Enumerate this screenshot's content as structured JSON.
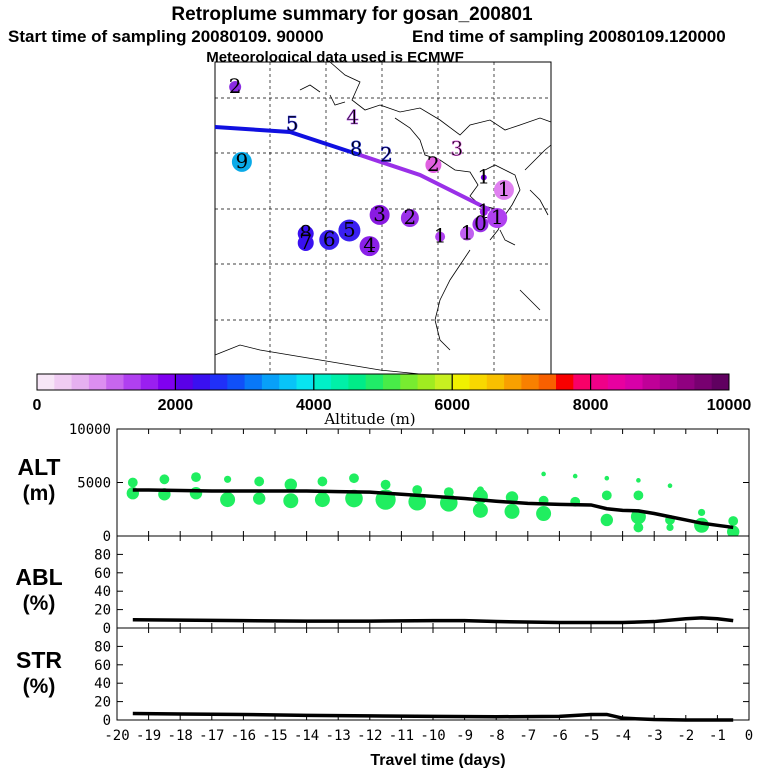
{
  "header": {
    "title": "Retroplume summary for gosan_200801",
    "start_label": "Start time of sampling 20080109. 90000",
    "end_label": "End time of sampling 20080109.120000",
    "met_label": "Meteorological data used is ECMWF"
  },
  "colorbar": {
    "ticks": [
      "0",
      "2000",
      "4000",
      "6000",
      "8000",
      "10000"
    ],
    "label": "Altitude (m)",
    "colors": [
      "#f7e6f7",
      "#f0ccf3",
      "#e6b0f0",
      "#dc8ef0",
      "#c766ee",
      "#b040f0",
      "#9a1ff0",
      "#8000f0",
      "#5a00e8",
      "#3a10f0",
      "#2030f8",
      "#1050f8",
      "#0878f8",
      "#08a0f8",
      "#08c4f8",
      "#08e4f0",
      "#00f0c8",
      "#00f0a8",
      "#00ec88",
      "#20ec68",
      "#48ec48",
      "#78ec30",
      "#a0ec20",
      "#c8f020",
      "#f0f000",
      "#f8d800",
      "#f8c000",
      "#f8a000",
      "#f88000",
      "#f86000",
      "#f80000",
      "#f80068",
      "#f00088",
      "#e800a0",
      "#d800a8",
      "#c00098",
      "#a80090",
      "#900080",
      "#780070",
      "#600060"
    ]
  },
  "map": {
    "labels": [
      {
        "t": "2",
        "lon": 0.06,
        "lat": 0.08,
        "c": "#8a2be2",
        "dot": true
      },
      {
        "t": "4",
        "lon": 0.41,
        "lat": 0.18,
        "c": "#b04fe0"
      },
      {
        "t": "5",
        "lon": 0.23,
        "lat": 0.2,
        "c": "#2020d0"
      },
      {
        "t": "9",
        "lon": 0.08,
        "lat": 0.32,
        "c": "#0aaae8",
        "dot": true,
        "r": 10
      },
      {
        "t": "8",
        "lon": 0.42,
        "lat": 0.28,
        "c": "#2030d0"
      },
      {
        "t": "2",
        "lon": 0.51,
        "lat": 0.3,
        "c": "#2020d0"
      },
      {
        "t": "2",
        "lon": 0.65,
        "lat": 0.33,
        "c": "#e060e0",
        "dot": true,
        "r": 8
      },
      {
        "t": "3",
        "lon": 0.72,
        "lat": 0.28,
        "c": "#e060e0"
      },
      {
        "t": "1",
        "lon": 0.8,
        "lat": 0.37,
        "c": "#7a00f0",
        "dot": true,
        "r": 3
      },
      {
        "t": "1",
        "lon": 0.86,
        "lat": 0.41,
        "c": "#e080f0",
        "dot": true,
        "r": 10
      },
      {
        "t": "3",
        "lon": 0.49,
        "lat": 0.49,
        "c": "#8a1be2",
        "dot": true,
        "r": 10
      },
      {
        "t": "2",
        "lon": 0.58,
        "lat": 0.5,
        "c": "#9a30e8",
        "dot": true,
        "r": 9
      },
      {
        "t": "1",
        "lon": 0.8,
        "lat": 0.48,
        "c": "#a020f0",
        "dot": true,
        "r": 4
      },
      {
        "t": "1",
        "lon": 0.84,
        "lat": 0.5,
        "c": "#b040f0",
        "dot": true,
        "r": 10
      },
      {
        "t": "0",
        "lon": 0.79,
        "lat": 0.52,
        "c": "#9a30e8",
        "dot": true,
        "r": 8
      },
      {
        "t": "1",
        "lon": 0.75,
        "lat": 0.55,
        "c": "#c060f0",
        "dot": true,
        "r": 7
      },
      {
        "t": "1",
        "lon": 0.67,
        "lat": 0.56,
        "c": "#b040f0",
        "dot": true,
        "r": 5
      },
      {
        "t": "5",
        "lon": 0.4,
        "lat": 0.54,
        "c": "#3a20f0",
        "dot": true,
        "r": 11
      },
      {
        "t": "8",
        "lon": 0.27,
        "lat": 0.55,
        "c": "#3a10f0",
        "dot": true,
        "r": 8
      },
      {
        "t": "6",
        "lon": 0.34,
        "lat": 0.57,
        "c": "#3a20f0",
        "dot": true,
        "r": 10
      },
      {
        "t": "7",
        "lon": 0.27,
        "lat": 0.58,
        "c": "#3a10f0",
        "dot": true,
        "r": 8
      },
      {
        "t": "4",
        "lon": 0.46,
        "lat": 0.59,
        "c": "#8a20e8",
        "dot": true,
        "r": 10
      }
    ]
  },
  "chart_data": [
    {
      "type": "scatter",
      "title": "ALT (m)",
      "ylabel": "ALT (m)",
      "xlabel": "Travel time (days)",
      "xlim": [
        -20,
        0
      ],
      "ylim": [
        0,
        10000
      ],
      "yticks": [
        "0",
        "5000",
        "10000"
      ],
      "median_line": {
        "x": [
          -19.5,
          -19,
          -18,
          -17,
          -16,
          -15,
          -14,
          -13,
          -12,
          -11,
          -10,
          -9,
          -8,
          -7,
          -6,
          -5,
          -4.5,
          -4,
          -3.5,
          -3,
          -2.5,
          -2,
          -1.5,
          -1,
          -0.5
        ],
        "y": [
          4300,
          4300,
          4250,
          4200,
          4200,
          4200,
          4200,
          4150,
          4100,
          3900,
          3700,
          3500,
          3250,
          3050,
          2950,
          2900,
          2550,
          2400,
          2350,
          2100,
          1800,
          1500,
          1200,
          1000,
          800
        ]
      },
      "points": [
        {
          "x": -19.5,
          "y": 5000,
          "s": 3
        },
        {
          "x": -19.5,
          "y": 4000,
          "s": 4
        },
        {
          "x": -18.5,
          "y": 5300,
          "s": 3
        },
        {
          "x": -18.5,
          "y": 3900,
          "s": 4
        },
        {
          "x": -17.5,
          "y": 5500,
          "s": 3
        },
        {
          "x": -17.5,
          "y": 4000,
          "s": 4
        },
        {
          "x": -16.5,
          "y": 5300,
          "s": 2
        },
        {
          "x": -16.5,
          "y": 3400,
          "s": 5
        },
        {
          "x": -15.5,
          "y": 5100,
          "s": 3
        },
        {
          "x": -15.5,
          "y": 3500,
          "s": 4
        },
        {
          "x": -14.5,
          "y": 4800,
          "s": 4
        },
        {
          "x": -14.5,
          "y": 3300,
          "s": 5
        },
        {
          "x": -13.5,
          "y": 5100,
          "s": 3
        },
        {
          "x": -13.5,
          "y": 3400,
          "s": 5
        },
        {
          "x": -12.5,
          "y": 5400,
          "s": 3
        },
        {
          "x": -12.5,
          "y": 3500,
          "s": 6
        },
        {
          "x": -11.5,
          "y": 4800,
          "s": 3
        },
        {
          "x": -11.5,
          "y": 3400,
          "s": 7
        },
        {
          "x": -10.5,
          "y": 4300,
          "s": 3
        },
        {
          "x": -10.5,
          "y": 3200,
          "s": 6
        },
        {
          "x": -9.5,
          "y": 4100,
          "s": 3
        },
        {
          "x": -9.5,
          "y": 3100,
          "s": 6
        },
        {
          "x": -8.5,
          "y": 4300,
          "s": 2
        },
        {
          "x": -8.5,
          "y": 2400,
          "s": 5
        },
        {
          "x": -8.5,
          "y": 3700,
          "s": 5
        },
        {
          "x": -7.5,
          "y": 3600,
          "s": 4
        },
        {
          "x": -7.5,
          "y": 2300,
          "s": 5
        },
        {
          "x": -6.5,
          "y": 5800,
          "s": 1
        },
        {
          "x": -6.5,
          "y": 3300,
          "s": 3
        },
        {
          "x": -6.5,
          "y": 2100,
          "s": 5
        },
        {
          "x": -5.5,
          "y": 5600,
          "s": 1
        },
        {
          "x": -5.5,
          "y": 3200,
          "s": 3
        },
        {
          "x": -4.5,
          "y": 5400,
          "s": 1
        },
        {
          "x": -4.5,
          "y": 3800,
          "s": 3
        },
        {
          "x": -4.5,
          "y": 1500,
          "s": 4
        },
        {
          "x": -3.5,
          "y": 5200,
          "s": 1
        },
        {
          "x": -3.5,
          "y": 3800,
          "s": 3
        },
        {
          "x": -3.5,
          "y": 1800,
          "s": 5
        },
        {
          "x": -3.5,
          "y": 800,
          "s": 3
        },
        {
          "x": -2.5,
          "y": 4700,
          "s": 1
        },
        {
          "x": -2.5,
          "y": 1500,
          "s": 3
        },
        {
          "x": -2.5,
          "y": 800,
          "s": 2
        },
        {
          "x": -1.5,
          "y": 2200,
          "s": 2
        },
        {
          "x": -1.5,
          "y": 1000,
          "s": 5
        },
        {
          "x": -0.5,
          "y": 1400,
          "s": 3
        },
        {
          "x": -0.5,
          "y": 400,
          "s": 4
        }
      ]
    },
    {
      "type": "line",
      "title": "ABL (%)",
      "ylabel": "ABL (%)",
      "xlim": [
        -20,
        0
      ],
      "ylim": [
        0,
        90
      ],
      "yticks": [
        "0",
        "20",
        "40",
        "60",
        "80"
      ],
      "x": [
        -19.5,
        -18,
        -16,
        -14,
        -12,
        -10,
        -9,
        -8,
        -6,
        -4,
        -3,
        -2,
        -1.5,
        -1,
        -0.5
      ],
      "y": [
        9,
        8.5,
        8,
        7.5,
        7.5,
        8,
        8,
        7,
        6,
        6,
        7,
        10,
        11,
        10,
        8
      ]
    },
    {
      "type": "line",
      "title": "STR (%)",
      "ylabel": "STR (%)",
      "xlabel": "Travel time (days)",
      "xlim": [
        -20,
        0
      ],
      "ylim": [
        0,
        90
      ],
      "yticks": [
        "0",
        "20",
        "40",
        "60",
        "80"
      ],
      "xticks": [
        "-20",
        "-19",
        "-18",
        "-17",
        "-16",
        "-15",
        "-14",
        "-13",
        "-12",
        "-11",
        "-10",
        "-9",
        "-8",
        "-7",
        "-6",
        "-5",
        "-4",
        "-3",
        "-2",
        "-1",
        "0"
      ],
      "x": [
        -19.5,
        -18,
        -16,
        -14,
        -12,
        -10,
        -8,
        -6,
        -5,
        -4.5,
        -4,
        -3,
        -2,
        -1,
        -0.5
      ],
      "y": [
        7,
        6.5,
        6,
        5,
        4.5,
        4,
        3.5,
        4,
        6,
        6,
        2,
        0.5,
        0,
        0,
        0
      ]
    }
  ]
}
